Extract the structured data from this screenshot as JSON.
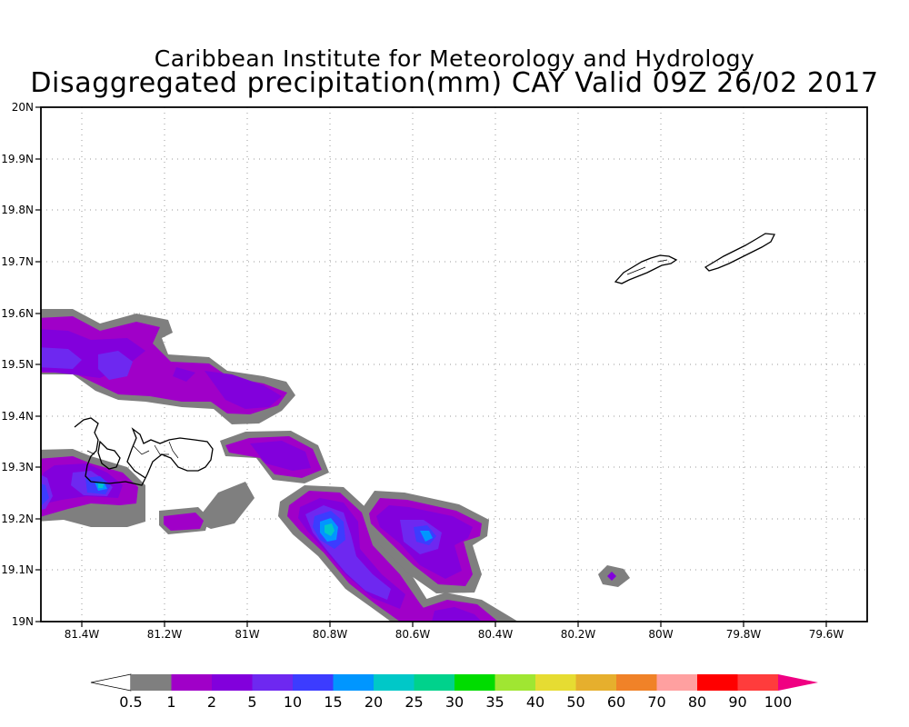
{
  "title": {
    "line1": "Caribbean Institute for Meteorology and Hydrology",
    "line2": "Disaggregated precipitation(mm) CAY Valid 09Z 26/02 2017"
  },
  "map": {
    "lat_range": [
      19.0,
      20.0
    ],
    "lon_range": [
      -81.5,
      -79.5
    ],
    "lat_ticks": [
      "20N",
      "19.9N",
      "19.8N",
      "19.7N",
      "19.6N",
      "19.5N",
      "19.4N",
      "19.3N",
      "19.2N",
      "19.1N",
      "19N"
    ],
    "lon_ticks": [
      "81.4W",
      "81.2W",
      "81W",
      "80.8W",
      "80.6W",
      "80.4W",
      "80.2W",
      "80W",
      "79.8W",
      "79.6W"
    ],
    "grid": "dotted",
    "islands": [
      "Grand Cayman",
      "Little Cayman",
      "Cayman Brac"
    ]
  },
  "colorbar": {
    "labels": [
      "0.5",
      "1",
      "2",
      "5",
      "10",
      "15",
      "20",
      "25",
      "30",
      "35",
      "40",
      "50",
      "60",
      "70",
      "80",
      "90",
      "100"
    ],
    "colors": [
      "#7f7f7f",
      "#a000c8",
      "#8200dc",
      "#6e28f0",
      "#3c3cff",
      "#0096ff",
      "#00c8c8",
      "#00d28c",
      "#00dc00",
      "#a0e632",
      "#e6dc32",
      "#e6af2d",
      "#f08228",
      "#ffa0a0",
      "#ff0000",
      "#ff3c3c",
      "#f00082"
    ]
  },
  "chart_data": {
    "type": "heatmap",
    "title": "Disaggregated precipitation(mm) CAY Valid 09Z 26/02 2017",
    "x_range": [
      -81.5,
      -79.5
    ],
    "y_range": [
      19.0,
      20.0
    ],
    "levels": [
      0.5,
      1,
      2,
      5,
      10,
      15,
      20,
      25,
      30,
      35,
      40,
      50,
      60,
      70,
      80,
      90,
      100
    ],
    "cells": [
      {
        "lon": -81.49,
        "lat": 19.5,
        "value": 5
      },
      {
        "lon": -81.33,
        "lat": 19.49,
        "value": 5
      },
      {
        "lon": -81.36,
        "lat": 19.26,
        "value": 10
      },
      {
        "lon": -81.49,
        "lat": 19.24,
        "value": 5
      },
      {
        "lon": -80.8,
        "lat": 19.17,
        "value": 15
      },
      {
        "lon": -80.57,
        "lat": 19.16,
        "value": 10
      },
      {
        "lon": -80.12,
        "lat": 19.085,
        "value": 2
      }
    ]
  }
}
